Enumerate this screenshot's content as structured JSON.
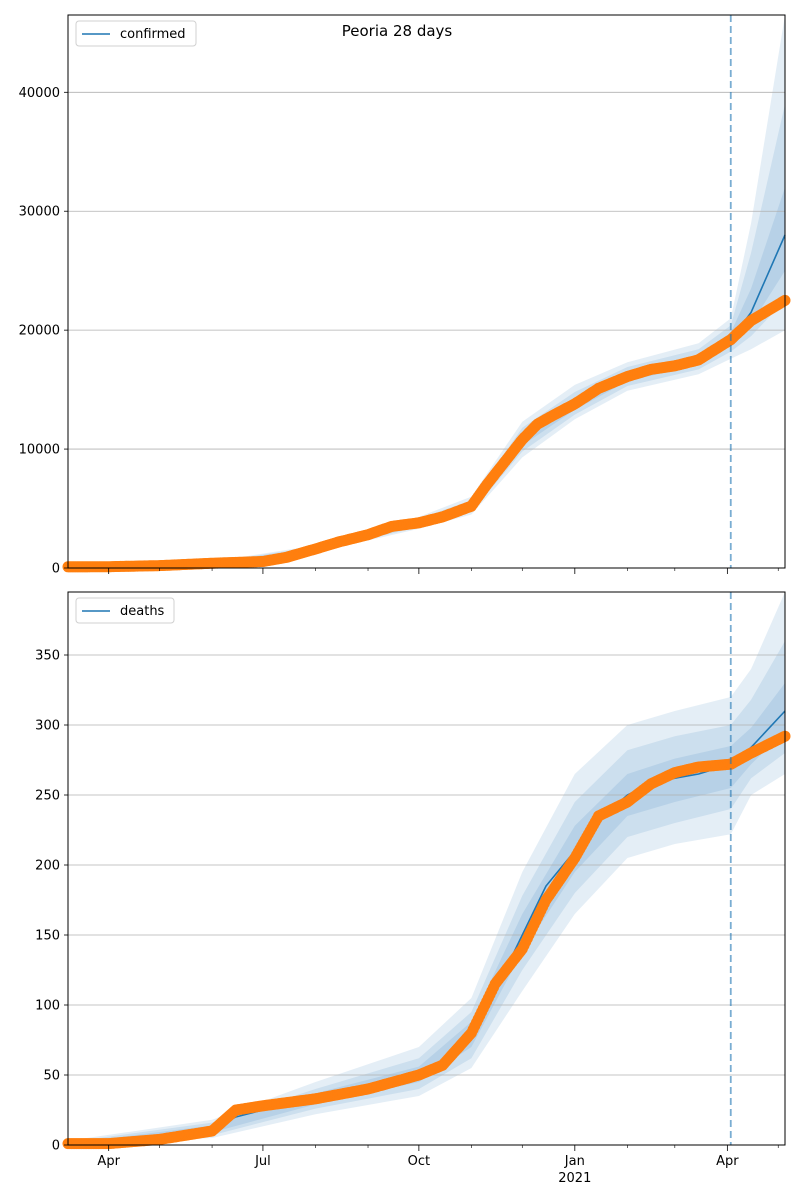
{
  "title": "Peoria 28 days",
  "x_ticks": [
    "Apr",
    "Jul",
    "Oct",
    "Jan",
    "Apr"
  ],
  "x_year_label": "2021",
  "chart_data": [
    {
      "type": "line",
      "legend": "confirmed",
      "legend_position": "upper-left",
      "grid": "y",
      "ylim": [
        0,
        46500
      ],
      "yticks": [
        0,
        10000,
        20000,
        30000,
        40000
      ],
      "xlim": [
        "2020-03-08",
        "2021-05-05"
      ],
      "forecast_start": "2021-04-03",
      "colors": {
        "model": "#1f77b4",
        "observed": "#ff7f0e",
        "band": "#1f77b4"
      },
      "model": {
        "name": "confirmed",
        "x": [
          "2020-03-08",
          "2020-04-01",
          "2020-05-01",
          "2020-06-01",
          "2020-07-01",
          "2020-07-15",
          "2020-08-01",
          "2020-08-15",
          "2020-09-01",
          "2020-09-15",
          "2020-10-01",
          "2020-10-15",
          "2020-11-01",
          "2020-11-10",
          "2020-11-20",
          "2020-12-01",
          "2020-12-10",
          "2020-12-20",
          "2021-01-01",
          "2021-01-15",
          "2021-02-01",
          "2021-02-15",
          "2021-03-01",
          "2021-03-15",
          "2021-04-03",
          "2021-04-15",
          "2021-05-05"
        ],
        "y": [
          100,
          110,
          200,
          400,
          550,
          900,
          1600,
          2200,
          2800,
          3500,
          3800,
          4300,
          5200,
          7000,
          8800,
          10800,
          12100,
          12900,
          13800,
          15100,
          16100,
          16700,
          17000,
          17500,
          19200,
          21500,
          28000
        ]
      },
      "observed": {
        "x": [
          "2020-03-08",
          "2020-04-01",
          "2020-05-01",
          "2020-06-01",
          "2020-07-01",
          "2020-07-15",
          "2020-08-01",
          "2020-08-15",
          "2020-09-01",
          "2020-09-15",
          "2020-10-01",
          "2020-10-15",
          "2020-11-01",
          "2020-11-10",
          "2020-11-20",
          "2020-12-01",
          "2020-12-10",
          "2020-12-20",
          "2021-01-01",
          "2021-01-15",
          "2021-02-01",
          "2021-02-15",
          "2021-03-01",
          "2021-03-15",
          "2021-04-03",
          "2021-04-15",
          "2021-05-05"
        ],
        "y": [
          100,
          110,
          200,
          400,
          550,
          900,
          1600,
          2200,
          2800,
          3500,
          3800,
          4300,
          5200,
          7000,
          8800,
          10800,
          12100,
          12900,
          13800,
          15100,
          16100,
          16700,
          17000,
          17500,
          19200,
          20800,
          22500
        ]
      },
      "bands": [
        {
          "x": [
            "2020-03-08",
            "2020-06-01",
            "2020-08-01",
            "2020-10-01",
            "2020-11-01",
            "2020-12-01",
            "2021-01-01",
            "2021-02-01",
            "2021-03-15",
            "2021-04-03",
            "2021-04-15",
            "2021-05-05"
          ],
          "lower": [
            50,
            300,
            1300,
            3300,
            4500,
            9300,
            12500,
            14900,
            16300,
            17600,
            18400,
            20000
          ],
          "upper": [
            180,
            550,
            1900,
            4300,
            6000,
            12300,
            15400,
            17300,
            18900,
            21000,
            29000,
            46500
          ]
        },
        {
          "x": [
            "2020-03-08",
            "2020-06-01",
            "2020-08-01",
            "2020-10-01",
            "2020-11-01",
            "2020-12-01",
            "2021-01-01",
            "2021-02-01",
            "2021-03-15",
            "2021-04-03",
            "2021-04-15",
            "2021-05-05"
          ],
          "lower": [
            70,
            340,
            1400,
            3450,
            4700,
            9800,
            12900,
            15300,
            16700,
            18200,
            19500,
            22500
          ],
          "upper": [
            150,
            480,
            1800,
            4150,
            5700,
            11800,
            14800,
            16900,
            18400,
            20400,
            26500,
            39000
          ]
        },
        {
          "x": [
            "2020-03-08",
            "2020-06-01",
            "2020-08-01",
            "2020-10-01",
            "2020-11-01",
            "2020-12-01",
            "2021-01-01",
            "2021-02-01",
            "2021-03-15",
            "2021-04-03",
            "2021-04-15",
            "2021-05-05"
          ],
          "lower": [
            85,
            370,
            1500,
            3600,
            4950,
            10300,
            13300,
            15700,
            17100,
            18700,
            20500,
            25000
          ],
          "upper": [
            125,
            440,
            1700,
            4000,
            5450,
            11300,
            14300,
            16500,
            17900,
            19800,
            23500,
            32000
          ]
        }
      ]
    },
    {
      "type": "line",
      "legend": "deaths",
      "legend_position": "upper-left",
      "grid": "y",
      "ylim": [
        0,
        395
      ],
      "yticks": [
        0,
        50,
        100,
        150,
        200,
        250,
        300,
        350
      ],
      "xlim": [
        "2020-03-08",
        "2021-05-05"
      ],
      "forecast_start": "2021-04-03",
      "colors": {
        "model": "#1f77b4",
        "observed": "#ff7f0e",
        "band": "#1f77b4"
      },
      "model": {
        "name": "deaths",
        "x": [
          "2020-03-08",
          "2020-04-01",
          "2020-05-01",
          "2020-06-01",
          "2020-06-15",
          "2020-07-01",
          "2020-08-01",
          "2020-09-01",
          "2020-10-01",
          "2020-10-15",
          "2020-11-01",
          "2020-11-15",
          "2020-12-01",
          "2020-12-15",
          "2021-01-01",
          "2021-01-15",
          "2021-02-01",
          "2021-02-15",
          "2021-03-01",
          "2021-03-15",
          "2021-04-03",
          "2021-04-15",
          "2021-05-05"
        ],
        "y": [
          1,
          1,
          4,
          12,
          20,
          25,
          33,
          40,
          50,
          60,
          80,
          110,
          150,
          185,
          210,
          232,
          250,
          258,
          262,
          265,
          272,
          284,
          310
        ]
      },
      "observed": {
        "x": [
          "2020-03-08",
          "2020-04-01",
          "2020-05-01",
          "2020-06-01",
          "2020-06-15",
          "2020-07-01",
          "2020-08-01",
          "2020-09-01",
          "2020-10-01",
          "2020-10-15",
          "2020-11-01",
          "2020-11-15",
          "2020-12-01",
          "2020-12-15",
          "2021-01-01",
          "2021-01-15",
          "2021-02-01",
          "2021-02-15",
          "2021-03-01",
          "2021-03-15",
          "2021-04-03",
          "2021-04-15",
          "2021-05-05"
        ],
        "y": [
          1,
          1,
          4,
          10,
          25,
          28,
          33,
          40,
          50,
          57,
          80,
          115,
          140,
          175,
          205,
          235,
          245,
          258,
          266,
          270,
          272,
          280,
          292
        ]
      },
      "bands": [
        {
          "x": [
            "2020-03-08",
            "2020-06-01",
            "2020-08-01",
            "2020-10-01",
            "2020-11-01",
            "2020-12-01",
            "2021-01-01",
            "2021-02-01",
            "2021-03-01",
            "2021-04-03",
            "2021-04-15",
            "2021-05-05"
          ],
          "lower": [
            0,
            5,
            22,
            35,
            55,
            110,
            165,
            205,
            215,
            222,
            250,
            265
          ],
          "upper": [
            3,
            18,
            45,
            70,
            105,
            195,
            265,
            300,
            310,
            320,
            340,
            395
          ]
        },
        {
          "x": [
            "2020-03-08",
            "2020-06-01",
            "2020-08-01",
            "2020-10-01",
            "2020-11-01",
            "2020-12-01",
            "2021-01-01",
            "2021-02-01",
            "2021-03-01",
            "2021-04-03",
            "2021-04-15",
            "2021-05-05"
          ],
          "lower": [
            0,
            7,
            26,
            40,
            62,
            125,
            180,
            220,
            230,
            240,
            262,
            280
          ],
          "upper": [
            2,
            16,
            40,
            62,
            95,
            178,
            245,
            282,
            292,
            300,
            318,
            360
          ]
        },
        {
          "x": [
            "2020-03-08",
            "2020-06-01",
            "2020-08-01",
            "2020-10-01",
            "2020-11-01",
            "2020-12-01",
            "2021-01-01",
            "2021-02-01",
            "2021-03-01",
            "2021-04-03",
            "2021-04-15",
            "2021-05-05"
          ],
          "lower": [
            0,
            9,
            29,
            45,
            70,
            138,
            195,
            235,
            245,
            255,
            272,
            295
          ],
          "upper": [
            1,
            14,
            37,
            56,
            88,
            165,
            228,
            265,
            276,
            285,
            298,
            330
          ]
        }
      ]
    }
  ]
}
